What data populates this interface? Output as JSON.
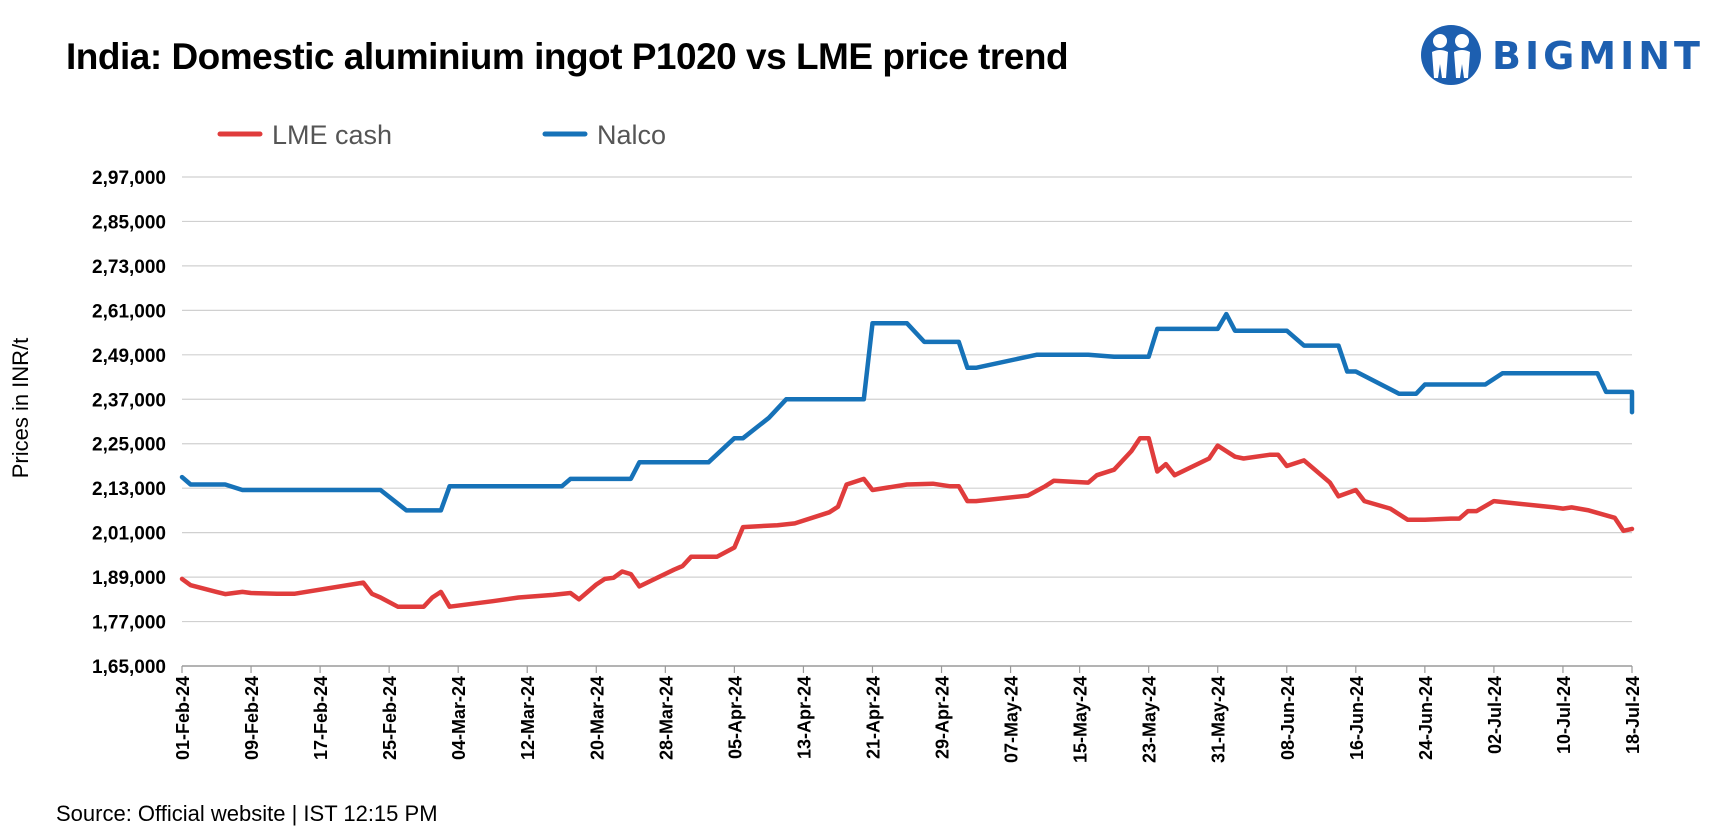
{
  "header": {
    "title": "India: Domestic aluminium ingot P1020 vs LME price trend"
  },
  "logo": {
    "text": "BIGMINT",
    "color": "#1d5fb0",
    "icon": "people-circle-icon"
  },
  "footer": {
    "source": "Source: Official website | IST 12:15 PM"
  },
  "chart_data": {
    "type": "line",
    "title": "India: Domestic aluminium ingot P1020 vs LME price trend",
    "ylabel": "Prices in INR/t",
    "xlabel": "",
    "ylim": [
      165000,
      297000
    ],
    "y_ticks": [
      165000,
      177000,
      189000,
      201000,
      213000,
      225000,
      237000,
      249000,
      261000,
      273000,
      285000,
      297000
    ],
    "y_tick_labels": [
      "1,65,000",
      "1,77,000",
      "1,89,000",
      "2,01,000",
      "2,13,000",
      "2,25,000",
      "2,37,000",
      "2,49,000",
      "2,61,000",
      "2,73,000",
      "2,85,000",
      "2,97,000"
    ],
    "x_start": "01-Feb-24",
    "x_end": "18-Jul-24",
    "x_tick_labels": [
      "01-Feb-24",
      "09-Feb-24",
      "17-Feb-24",
      "25-Feb-24",
      "04-Mar-24",
      "12-Mar-24",
      "20-Mar-24",
      "28-Mar-24",
      "05-Apr-24",
      "13-Apr-24",
      "21-Apr-24",
      "29-Apr-24",
      "07-May-24",
      "15-May-24",
      "23-May-24",
      "31-May-24",
      "08-Jun-24",
      "16-Jun-24",
      "24-Jun-24",
      "02-Jul-24",
      "10-Jul-24",
      "18-Jul-24"
    ],
    "grid": true,
    "legend_position": "top-left",
    "series": [
      {
        "name": "LME cash",
        "color": "#e03c3c",
        "points": [
          [
            "2024-02-01",
            188500
          ],
          [
            "2024-02-02",
            186800
          ],
          [
            "2024-02-05",
            185000
          ],
          [
            "2024-02-06",
            184400
          ],
          [
            "2024-02-08",
            185000
          ],
          [
            "2024-02-09",
            184700
          ],
          [
            "2024-02-12",
            184500
          ],
          [
            "2024-02-14",
            184500
          ],
          [
            "2024-02-22",
            187500
          ],
          [
            "2024-02-23",
            184500
          ],
          [
            "2024-02-24",
            183500
          ],
          [
            "2024-02-26",
            181000
          ],
          [
            "2024-02-29",
            181000
          ],
          [
            "2024-03-01",
            183500
          ],
          [
            "2024-03-02",
            185000
          ],
          [
            "2024-03-03",
            181000
          ],
          [
            "2024-03-08",
            182500
          ],
          [
            "2024-03-11",
            183500
          ],
          [
            "2024-03-15",
            184200
          ],
          [
            "2024-03-17",
            184700
          ],
          [
            "2024-03-18",
            183000
          ],
          [
            "2024-03-20",
            187000
          ],
          [
            "2024-03-21",
            188500
          ],
          [
            "2024-03-22",
            188800
          ],
          [
            "2024-03-23",
            190500
          ],
          [
            "2024-03-24",
            189800
          ],
          [
            "2024-03-25",
            186500
          ],
          [
            "2024-03-29",
            191000
          ],
          [
            "2024-03-30",
            192000
          ],
          [
            "2024-03-31",
            194500
          ],
          [
            "2024-04-03",
            194500
          ],
          [
            "2024-04-05",
            197000
          ],
          [
            "2024-04-06",
            202500
          ],
          [
            "2024-04-10",
            203000
          ],
          [
            "2024-04-12",
            203500
          ],
          [
            "2024-04-16",
            206500
          ],
          [
            "2024-04-17",
            208000
          ],
          [
            "2024-04-18",
            214000
          ],
          [
            "2024-04-20",
            215500
          ],
          [
            "2024-04-21",
            212500
          ],
          [
            "2024-04-25",
            214000
          ],
          [
            "2024-04-28",
            214200
          ],
          [
            "2024-04-30",
            213500
          ],
          [
            "2024-05-01",
            213500
          ],
          [
            "2024-05-02",
            209500
          ],
          [
            "2024-05-03",
            209500
          ],
          [
            "2024-05-09",
            211000
          ],
          [
            "2024-05-11",
            213500
          ],
          [
            "2024-05-12",
            215000
          ],
          [
            "2024-05-16",
            214500
          ],
          [
            "2024-05-17",
            216500
          ],
          [
            "2024-05-19",
            218000
          ],
          [
            "2024-05-21",
            223000
          ],
          [
            "2024-05-22",
            226500
          ],
          [
            "2024-05-23",
            226500
          ],
          [
            "2024-05-24",
            217500
          ],
          [
            "2024-05-25",
            219500
          ],
          [
            "2024-05-26",
            216500
          ],
          [
            "2024-05-30",
            221000
          ],
          [
            "2024-05-31",
            224500
          ],
          [
            "2024-06-02",
            221500
          ],
          [
            "2024-06-03",
            221000
          ],
          [
            "2024-06-06",
            222000
          ],
          [
            "2024-06-07",
            222000
          ],
          [
            "2024-06-08",
            219000
          ],
          [
            "2024-06-10",
            220500
          ],
          [
            "2024-06-13",
            214500
          ],
          [
            "2024-06-14",
            210800
          ],
          [
            "2024-06-16",
            212500
          ],
          [
            "2024-06-17",
            209500
          ],
          [
            "2024-06-20",
            207500
          ],
          [
            "2024-06-22",
            204500
          ],
          [
            "2024-06-24",
            204500
          ],
          [
            "2024-06-27",
            204800
          ],
          [
            "2024-06-28",
            204800
          ],
          [
            "2024-06-29",
            206800
          ],
          [
            "2024-06-30",
            206800
          ],
          [
            "2024-07-02",
            209500
          ],
          [
            "2024-07-09",
            207800
          ],
          [
            "2024-07-10",
            207500
          ],
          [
            "2024-07-11",
            207800
          ],
          [
            "2024-07-13",
            207000
          ],
          [
            "2024-07-16",
            205000
          ],
          [
            "2024-07-17",
            201500
          ],
          [
            "2024-07-18",
            202000
          ]
        ]
      },
      {
        "name": "Nalco",
        "color": "#1672b8",
        "points": [
          [
            "2024-02-01",
            216000
          ],
          [
            "2024-02-02",
            214000
          ],
          [
            "2024-02-06",
            214000
          ],
          [
            "2024-02-08",
            212500
          ],
          [
            "2024-02-24",
            212500
          ],
          [
            "2024-02-27",
            207000
          ],
          [
            "2024-03-02",
            207000
          ],
          [
            "2024-03-03",
            213500
          ],
          [
            "2024-03-16",
            213500
          ],
          [
            "2024-03-17",
            215500
          ],
          [
            "2024-03-24",
            215500
          ],
          [
            "2024-03-25",
            220000
          ],
          [
            "2024-04-02",
            220000
          ],
          [
            "2024-04-05",
            226500
          ],
          [
            "2024-04-06",
            226500
          ],
          [
            "2024-04-09",
            232000
          ],
          [
            "2024-04-11",
            237000
          ],
          [
            "2024-04-20",
            237000
          ],
          [
            "2024-04-21",
            257500
          ],
          [
            "2024-04-25",
            257500
          ],
          [
            "2024-04-27",
            252500
          ],
          [
            "2024-05-01",
            252500
          ],
          [
            "2024-05-02",
            245500
          ],
          [
            "2024-05-03",
            245500
          ],
          [
            "2024-05-10",
            249000
          ],
          [
            "2024-05-16",
            249000
          ],
          [
            "2024-05-19",
            248500
          ],
          [
            "2024-05-23",
            248500
          ],
          [
            "2024-05-24",
            256000
          ],
          [
            "2024-05-31",
            256000
          ],
          [
            "2024-06-01",
            260000
          ],
          [
            "2024-06-02",
            255500
          ],
          [
            "2024-06-08",
            255500
          ],
          [
            "2024-06-10",
            251500
          ],
          [
            "2024-06-14",
            251500
          ],
          [
            "2024-06-15",
            244500
          ],
          [
            "2024-06-16",
            244500
          ],
          [
            "2024-06-21",
            238500
          ],
          [
            "2024-06-23",
            238500
          ],
          [
            "2024-06-24",
            241000
          ],
          [
            "2024-07-01",
            241000
          ],
          [
            "2024-07-03",
            244000
          ],
          [
            "2024-07-14",
            244000
          ],
          [
            "2024-07-15",
            239000
          ],
          [
            "2024-07-22",
            239000
          ],
          [
            "2024-07-23",
            233500
          ]
        ]
      }
    ]
  }
}
